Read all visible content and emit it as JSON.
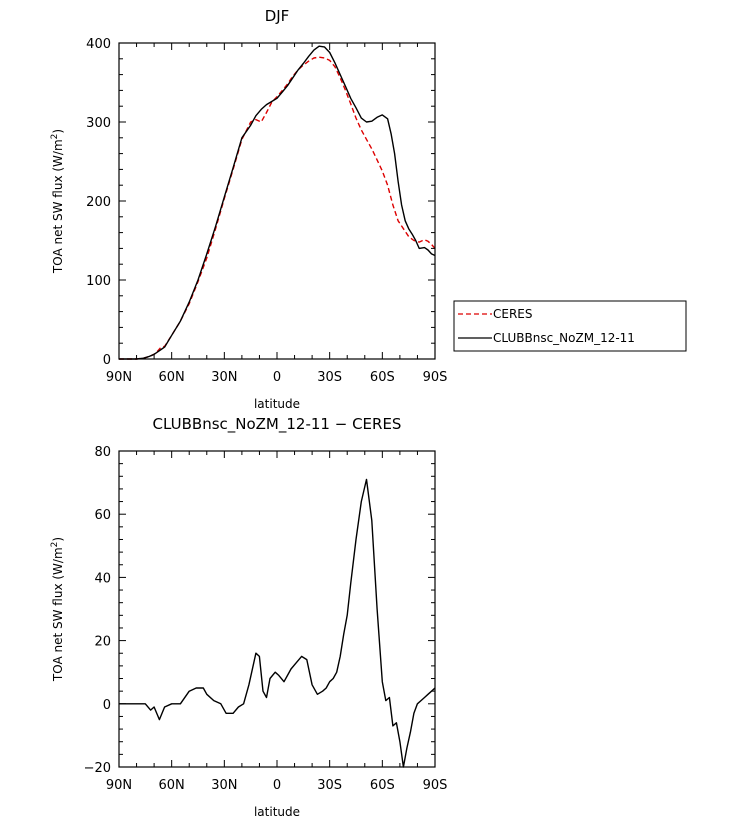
{
  "chart_data": [
    {
      "type": "line",
      "title": "DJF",
      "xlabel": "latitude",
      "ylabel": "TOA net SW flux (W/m",
      "ylabel_sup": "2",
      "ylabel_end": ")",
      "xlim": [
        -90,
        90
      ],
      "ylim": [
        0,
        400
      ],
      "xticks": [
        -90,
        -60,
        -30,
        0,
        30,
        60,
        90
      ],
      "xtick_labels": [
        "90N",
        "60N",
        "30N",
        "0",
        "30S",
        "60S",
        "90S"
      ],
      "yticks": [
        0,
        100,
        200,
        300,
        400
      ],
      "ytick_labels": [
        "0",
        "100",
        "200",
        "300",
        "400"
      ],
      "grid": false,
      "legend_placement": "right",
      "series": [
        {
          "name": "CERES",
          "color": "#dd0000",
          "dash": "dashed",
          "x": [
            -90,
            -80,
            -76,
            -73,
            -70,
            -68,
            -66,
            -64,
            -60,
            -55,
            -50,
            -45,
            -40,
            -35,
            -30,
            -25,
            -20,
            -15,
            -12,
            -9,
            -6,
            -3,
            0,
            3,
            6,
            9,
            12,
            15,
            18,
            21,
            24,
            27,
            30,
            33,
            36,
            39,
            42,
            45,
            48,
            51,
            54,
            57,
            60,
            63,
            66,
            69,
            72,
            75,
            78,
            81,
            84,
            86,
            88,
            90
          ],
          "y": [
            0,
            0,
            1,
            3,
            6,
            10,
            15,
            16,
            30,
            48,
            70,
            98,
            128,
            165,
            203,
            240,
            278,
            300,
            303,
            300,
            312,
            325,
            332,
            340,
            348,
            358,
            366,
            372,
            377,
            381,
            382,
            381,
            378,
            370,
            356,
            340,
            323,
            305,
            290,
            278,
            266,
            252,
            238,
            220,
            195,
            175,
            165,
            155,
            150,
            148,
            151,
            149,
            145,
            140
          ]
        },
        {
          "name": "CLUBBnsc_NoZM_12-11",
          "color": "#000000",
          "dash": "solid",
          "x": [
            -90,
            -80,
            -76,
            -73,
            -70,
            -68,
            -66,
            -64,
            -60,
            -55,
            -50,
            -45,
            -40,
            -35,
            -30,
            -25,
            -20,
            -15,
            -12,
            -9,
            -6,
            -3,
            0,
            3,
            6,
            9,
            12,
            15,
            18,
            21,
            24,
            27,
            30,
            33,
            36,
            39,
            42,
            45,
            48,
            51,
            54,
            57,
            60,
            63,
            65,
            67,
            69,
            71,
            73,
            75,
            77,
            79,
            81,
            84,
            86,
            88,
            90
          ],
          "y": [
            0,
            0,
            1,
            3,
            6,
            9,
            12,
            15,
            30,
            48,
            72,
            100,
            133,
            168,
            205,
            242,
            280,
            296,
            308,
            316,
            322,
            326,
            330,
            338,
            346,
            356,
            366,
            374,
            383,
            391,
            396,
            395,
            388,
            375,
            360,
            345,
            330,
            318,
            305,
            300,
            301,
            306,
            309,
            304,
            285,
            260,
            225,
            195,
            175,
            165,
            158,
            150,
            140,
            141,
            138,
            133,
            131
          ]
        }
      ]
    },
    {
      "type": "line",
      "title": "CLUBBnsc_NoZM_12-11 − CERES",
      "xlabel": "latitude",
      "ylabel": "TOA net SW flux (W/m",
      "ylabel_sup": "2",
      "ylabel_end": ")",
      "xlim": [
        -90,
        90
      ],
      "ylim": [
        -20,
        80
      ],
      "xticks": [
        -90,
        -60,
        -30,
        0,
        30,
        60,
        90
      ],
      "xtick_labels": [
        "90N",
        "60N",
        "30N",
        "0",
        "30S",
        "60S",
        "90S"
      ],
      "yticks": [
        -20,
        0,
        20,
        40,
        60,
        80
      ],
      "ytick_labels": [
        "−20",
        "0",
        "20",
        "40",
        "60",
        "80"
      ],
      "grid": false,
      "series": [
        {
          "name": "",
          "color": "#000000",
          "dash": "solid",
          "x": [
            -90,
            -75,
            -72,
            -70,
            -67,
            -64,
            -60,
            -55,
            -50,
            -46,
            -42,
            -40,
            -36,
            -32,
            -29,
            -25,
            -22,
            -19,
            -16,
            -12,
            -10,
            -8,
            -6,
            -4,
            -1,
            1,
            4,
            6,
            8,
            11,
            14,
            17,
            20,
            23,
            26,
            28,
            30,
            32,
            34,
            36,
            38,
            40,
            42,
            45,
            48,
            51,
            54,
            57,
            60,
            62,
            64,
            66,
            68,
            70,
            72,
            74,
            76,
            78,
            80,
            82,
            84,
            86,
            88,
            90
          ],
          "y": [
            0,
            0,
            -2,
            -1,
            -5,
            -1,
            0,
            0,
            4,
            5,
            5,
            3,
            1,
            0,
            -3,
            -3,
            -1,
            0,
            6,
            16,
            15,
            4,
            2,
            8,
            10,
            9,
            7,
            9,
            11,
            13,
            15,
            14,
            6,
            3,
            4,
            5,
            7,
            8,
            10,
            15,
            22,
            28,
            38,
            52,
            64,
            71,
            58,
            30,
            7,
            1,
            2,
            -7,
            -6,
            -12,
            -20,
            -14,
            -9,
            -3,
            0,
            1,
            2,
            3,
            4,
            5
          ]
        }
      ]
    }
  ]
}
